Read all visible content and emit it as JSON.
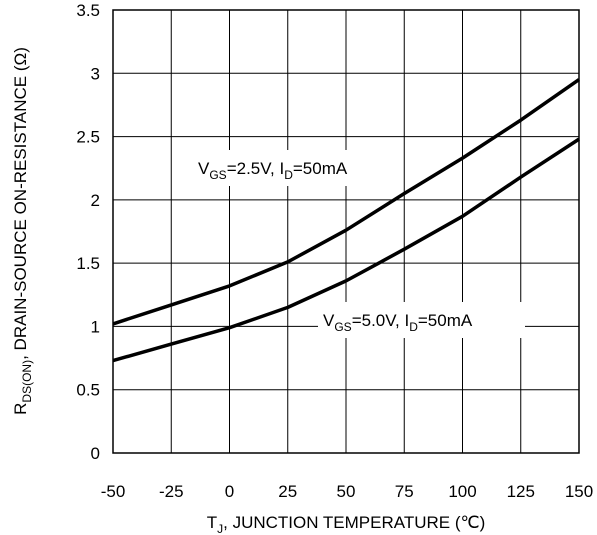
{
  "chart_data": {
    "type": "line",
    "xlabel": {
      "main": "T",
      "sub": "J",
      "rest": ", JUNCTION TEMPERATURE (℃)"
    },
    "ylabel": {
      "main": "R",
      "sub": "DS(ON)",
      "rest": ", DRAIN-SOURCE ON-RESISTANCE (Ω)"
    },
    "xlim": [
      -50,
      150
    ],
    "ylim": [
      0,
      3.5
    ],
    "xticks": [
      -50,
      -25,
      0,
      25,
      50,
      75,
      100,
      125,
      150
    ],
    "yticks": [
      0,
      0.5,
      1,
      1.5,
      2,
      2.5,
      3,
      3.5
    ],
    "xtick_labels": [
      "-50",
      "-25",
      "0",
      "25",
      "50",
      "75",
      "100",
      "125",
      "150"
    ],
    "ytick_labels": [
      "0",
      "0.5",
      "1",
      "1.5",
      "2",
      "2.5",
      "3",
      "3.5"
    ],
    "grid": true,
    "legend": "none",
    "line_color": "#000000",
    "series": [
      {
        "label": {
          "v": "V",
          "vsub": "GS",
          "vrest": "=2.5V, I",
          "isub": "D",
          "irest": "=50mA"
        },
        "x": [
          -50,
          -25,
          0,
          25,
          50,
          75,
          100,
          125,
          150
        ],
        "y": [
          1.02,
          1.17,
          1.32,
          1.51,
          1.76,
          2.05,
          2.33,
          2.63,
          2.95
        ]
      },
      {
        "label": {
          "v": "V",
          "vsub": "GS",
          "vrest": "=5.0V, I",
          "isub": "D",
          "irest": "=50mA"
        },
        "x": [
          -50,
          -25,
          0,
          25,
          50,
          75,
          100,
          125,
          150
        ],
        "y": [
          0.73,
          0.86,
          0.99,
          1.15,
          1.36,
          1.61,
          1.87,
          2.18,
          2.48
        ]
      }
    ]
  }
}
